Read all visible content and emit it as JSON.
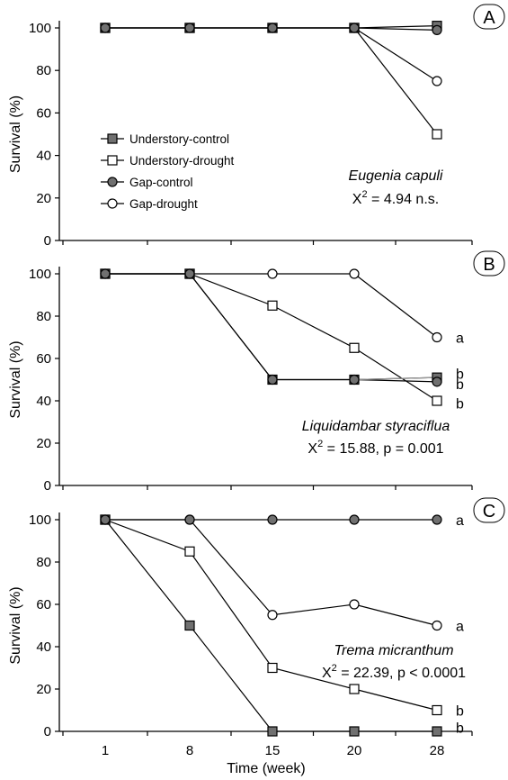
{
  "chart_data": [
    {
      "type": "line",
      "panel_label": "A",
      "categories": [
        "1",
        "8",
        "15",
        "20",
        "28"
      ],
      "ylabel": "Survival (%)",
      "ylim": [
        0,
        100
      ],
      "yticks": [
        0,
        20,
        40,
        60,
        80,
        100
      ],
      "species": "Eugenia capuli",
      "stat_prefix": "X",
      "stat_sup": "2",
      "stat_rest": " = 4.94 n.s.",
      "legend": {
        "placement": "center-left",
        "entries": [
          "Understory-control",
          "Understory-drought",
          "Gap-control",
          "Gap-drought"
        ]
      },
      "series": [
        {
          "name": "Understory-control",
          "marker": "square-filled",
          "values": [
            100,
            100,
            100,
            100,
            101
          ]
        },
        {
          "name": "Understory-drought",
          "marker": "square-open",
          "values": [
            100,
            100,
            100,
            100,
            50
          ]
        },
        {
          "name": "Gap-control",
          "marker": "circle-filled",
          "values": [
            100,
            100,
            100,
            100,
            99
          ]
        },
        {
          "name": "Gap-drought",
          "marker": "circle-open",
          "values": [
            100,
            100,
            100,
            100,
            75
          ]
        }
      ],
      "significance": []
    },
    {
      "type": "line",
      "panel_label": "B",
      "categories": [
        "1",
        "8",
        "15",
        "20",
        "28"
      ],
      "ylabel": "Survival (%)",
      "ylim": [
        0,
        100
      ],
      "yticks": [
        0,
        20,
        40,
        60,
        80,
        100
      ],
      "species": "Liquidambar styraciflua",
      "stat_prefix": "X",
      "stat_sup": "2",
      "stat_rest": " = 15.88, p = 0.001",
      "series": [
        {
          "name": "Understory-control",
          "marker": "square-filled",
          "values": [
            100,
            100,
            50,
            50,
            51
          ]
        },
        {
          "name": "Understory-drought",
          "marker": "square-open",
          "values": [
            100,
            100,
            85,
            65,
            40
          ]
        },
        {
          "name": "Gap-control",
          "marker": "circle-filled",
          "values": [
            100,
            100,
            50,
            50,
            49
          ]
        },
        {
          "name": "Gap-drought",
          "marker": "circle-open",
          "values": [
            100,
            100,
            100,
            100,
            70
          ]
        }
      ],
      "significance": [
        {
          "label": "a",
          "y": 70
        },
        {
          "label": "b",
          "y": 53
        },
        {
          "label": "b",
          "y": 48
        },
        {
          "label": "b",
          "y": 39
        }
      ]
    },
    {
      "type": "line",
      "panel_label": "C",
      "categories": [
        "1",
        "8",
        "15",
        "20",
        "28"
      ],
      "xlabel": "Time (week)",
      "ylabel": "Survival (%)",
      "ylim": [
        0,
        100
      ],
      "yticks": [
        0,
        20,
        40,
        60,
        80,
        100
      ],
      "species": "Trema micranthum",
      "stat_prefix": "X",
      "stat_sup": "2",
      "stat_rest": " = 22.39, p < 0.0001",
      "series": [
        {
          "name": "Understory-control",
          "marker": "square-filled",
          "values": [
            100,
            50,
            0,
            0,
            0
          ]
        },
        {
          "name": "Understory-drought",
          "marker": "square-open",
          "values": [
            100,
            85,
            30,
            20,
            10
          ]
        },
        {
          "name": "Gap-control",
          "marker": "circle-filled",
          "values": [
            100,
            100,
            100,
            100,
            100
          ]
        },
        {
          "name": "Gap-drought",
          "marker": "circle-open",
          "values": [
            100,
            100,
            55,
            60,
            50
          ]
        }
      ],
      "significance": [
        {
          "label": "a",
          "y": 100
        },
        {
          "label": "a",
          "y": 50
        },
        {
          "label": "b",
          "y": 10
        },
        {
          "label": "b",
          "y": 2
        }
      ]
    }
  ],
  "colors": {
    "filled_marker": "#707070",
    "line": "#000000",
    "axis": "#000000",
    "connector_grey": "#999999"
  }
}
